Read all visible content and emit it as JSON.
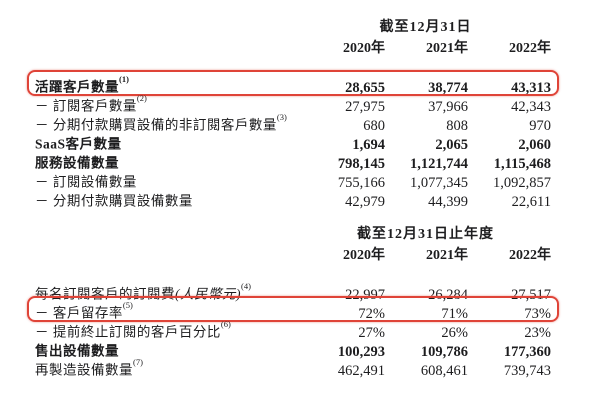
{
  "colors": {
    "background": "#ffffff",
    "text": "#1d1d1f",
    "highlight_box": "#df4438"
  },
  "section1": {
    "period_header": "截至12月31日",
    "years": [
      "2020年",
      "2021年",
      "2022年"
    ],
    "rows": [
      {
        "label": "活躍客戶數量",
        "sup": "(1)",
        "values": [
          "28,655",
          "38,774",
          "43,313"
        ]
      },
      {
        "label": "－ 訂閱客戶數量",
        "sup": "(2)",
        "values": [
          "27,975",
          "37,966",
          "42,343"
        ]
      },
      {
        "label": "－ 分期付款購買設備的非訂閱客戶數量",
        "sup": "(3)",
        "values": [
          "680",
          "808",
          "970"
        ]
      },
      {
        "label": "SaaS客戶數量",
        "values": [
          "1,694",
          "2,065",
          "2,060"
        ]
      },
      {
        "label": "服務設備數量",
        "values": [
          "798,145",
          "1,121,744",
          "1,115,468"
        ]
      },
      {
        "label": "－ 訂閱設備數量",
        "values": [
          "755,166",
          "1,077,345",
          "1,092,857"
        ]
      },
      {
        "label": "－ 分期付款購買設備數量",
        "values": [
          "42,979",
          "44,399",
          "22,611"
        ]
      }
    ]
  },
  "section2": {
    "period_header": "截至12月31日止年度",
    "years": [
      "2020年",
      "2021年",
      "2022年"
    ],
    "rows": [
      {
        "label": "每名訂閱客戶的訂閱費",
        "italic": "(人民幣元)",
        "sup": "(4)",
        "values": [
          "22,997",
          "26,284",
          "27,517"
        ]
      },
      {
        "label": "－ 客戶留存率",
        "sup": "(5)",
        "values": [
          "72%",
          "71%",
          "73%"
        ]
      },
      {
        "label": "－ 提前終止訂閱的客戶百分比",
        "sup": "(6)",
        "values": [
          "27%",
          "26%",
          "23%"
        ]
      },
      {
        "label": "售出設備數量",
        "values": [
          "100,293",
          "109,786",
          "177,360"
        ]
      },
      {
        "label": "再製造設備數量",
        "sup": "(7)",
        "values": [
          "462,491",
          "608,461",
          "739,743"
        ]
      }
    ]
  }
}
